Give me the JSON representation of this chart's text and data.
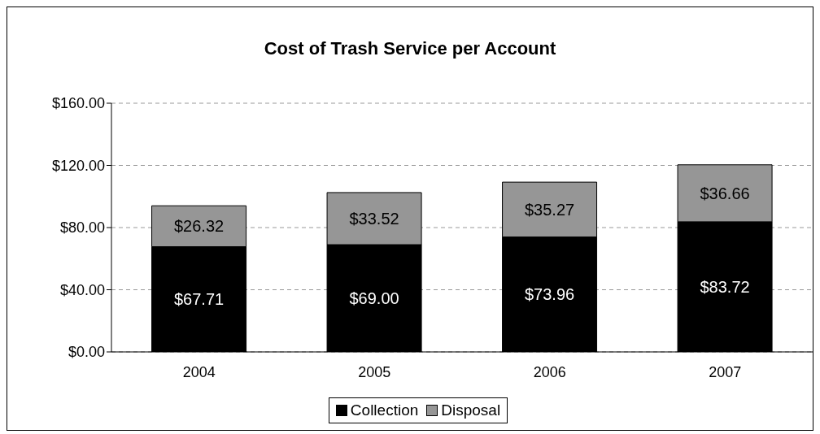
{
  "chart_data": {
    "type": "bar",
    "title": "Cost of Trash Service per Account",
    "categories": [
      "2004",
      "2005",
      "2006",
      "2007"
    ],
    "stacked": true,
    "series": [
      {
        "name": "Collection",
        "color": "#000000",
        "values": [
          67.71,
          69.0,
          73.96,
          83.72
        ],
        "value_labels": [
          "$67.71",
          "$69.00",
          "$73.96",
          "$83.72"
        ]
      },
      {
        "name": "Disposal",
        "color": "#969696",
        "values": [
          26.32,
          33.52,
          35.27,
          36.66
        ],
        "value_labels": [
          "$26.32",
          "$33.52",
          "$35.27",
          "$36.66"
        ]
      }
    ],
    "ylim": [
      0,
      160
    ],
    "yticks": [
      {
        "value": 0,
        "label": "$0.00"
      },
      {
        "value": 40,
        "label": "$40.00"
      },
      {
        "value": 80,
        "label": "$80.00"
      },
      {
        "value": 120,
        "label": "$120.00"
      },
      {
        "value": 160,
        "label": "$160.00"
      }
    ],
    "grid": "y",
    "legend": "bottom"
  }
}
